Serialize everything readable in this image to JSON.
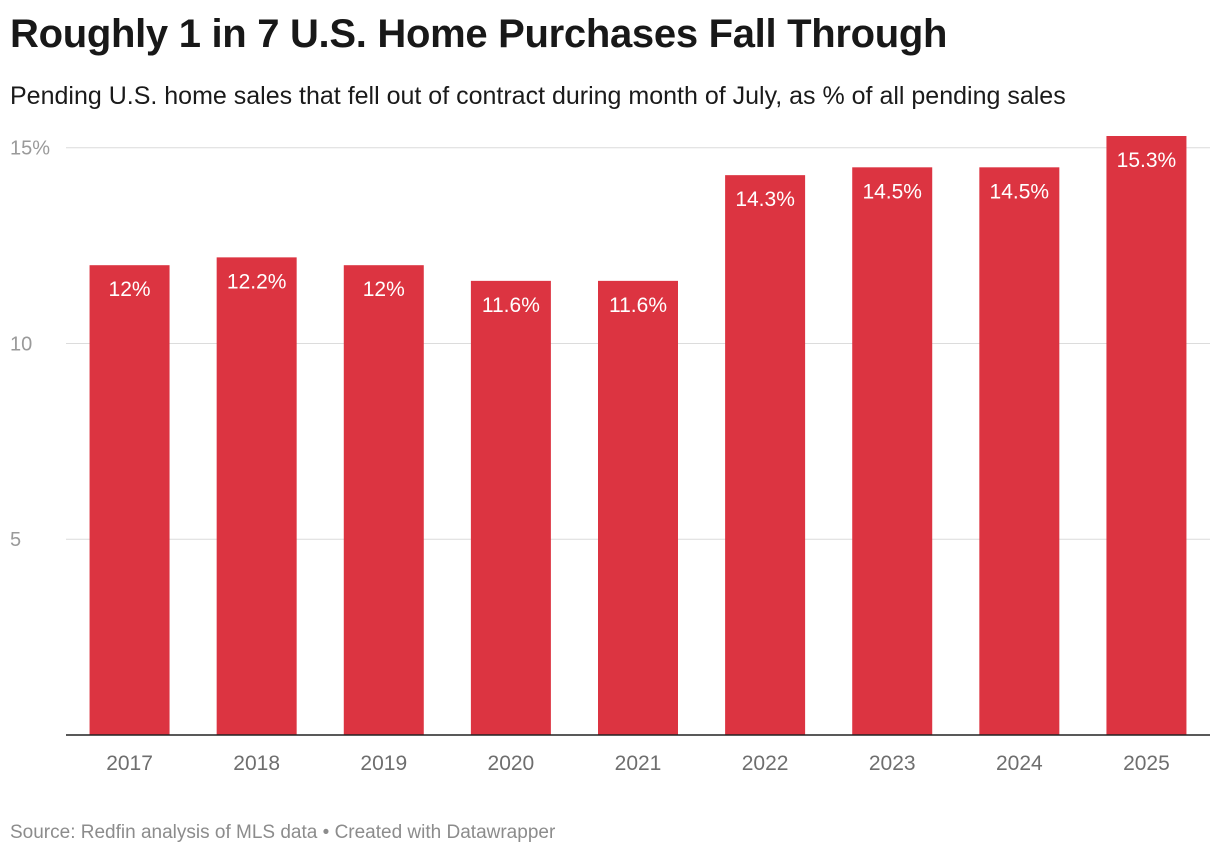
{
  "title": "Roughly 1 in 7 U.S. Home Purchases Fall Through",
  "subtitle": "Pending U.S. home sales that fell out of contract during month of July, as % of all pending sales",
  "footer": {
    "source": "Source: Redfin analysis of MLS data",
    "separator": " • ",
    "credit": "Created with Datawrapper"
  },
  "colors": {
    "bar": "#dc3441"
  },
  "chart_data": {
    "type": "bar",
    "categories": [
      "2017",
      "2018",
      "2019",
      "2020",
      "2021",
      "2022",
      "2023",
      "2024",
      "2025"
    ],
    "values": [
      12,
      12.2,
      12,
      11.6,
      11.6,
      14.3,
      14.5,
      14.5,
      15.3
    ],
    "data_labels": [
      "12%",
      "12.2%",
      "12%",
      "11.6%",
      "11.6%",
      "14.3%",
      "14.5%",
      "14.5%",
      "15.3%"
    ],
    "yticks": [
      5,
      10,
      15
    ],
    "ytick_labels": [
      "5",
      "10",
      "15%"
    ],
    "ylim": [
      0,
      15.3
    ],
    "grid": true,
    "xlabel": "",
    "ylabel": ""
  }
}
